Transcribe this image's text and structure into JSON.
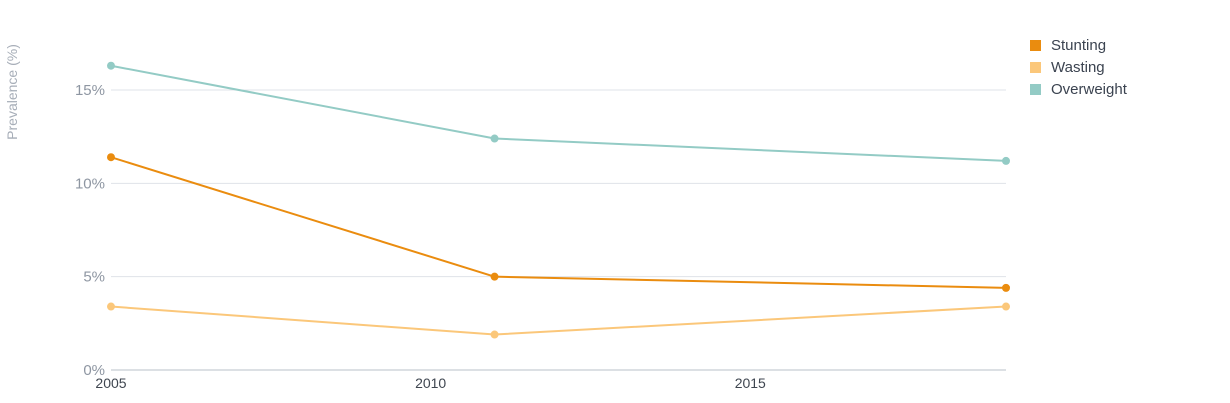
{
  "chart_data": {
    "type": "line",
    "ylabel": "Prevalence (%)",
    "x": [
      2005,
      2011,
      2019
    ],
    "xlim": [
      2005,
      2019
    ],
    "ylim": [
      0,
      18
    ],
    "y_ticks": [
      0,
      5,
      10,
      15
    ],
    "y_tick_labels": [
      "0%",
      "5%",
      "10%",
      "15%"
    ],
    "x_ticks": [
      2005,
      2010,
      2015
    ],
    "x_tick_labels": [
      "2005",
      "2010",
      "2015"
    ],
    "grid": true,
    "legend_position": "top-right",
    "series": [
      {
        "name": "Stunting",
        "color": "#ea8c0f",
        "values": [
          11.4,
          5.0,
          4.4
        ]
      },
      {
        "name": "Wasting",
        "color": "#fbc77a",
        "values": [
          3.4,
          1.9,
          3.4
        ]
      },
      {
        "name": "Overweight",
        "color": "#93cbc5",
        "values": [
          16.3,
          12.4,
          11.2
        ]
      }
    ]
  }
}
